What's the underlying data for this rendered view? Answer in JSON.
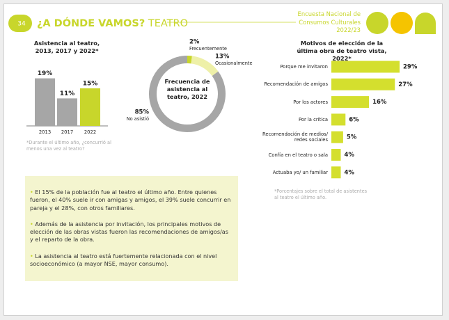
{
  "header": {
    "page_number": "34",
    "title": "¿A DÓNDE VAMOS?",
    "section": "TEATRO",
    "survey": [
      "Encuesta Nacional de",
      "Consumos Culturales",
      "2022/23"
    ]
  },
  "chart_data": [
    {
      "type": "bar",
      "title": "Asistencia al teatro, 2013, 2017 y 2022*",
      "categories": [
        "2013",
        "2017",
        "2022"
      ],
      "values": [
        19,
        11,
        15
      ],
      "value_labels": [
        "19%",
        "11%",
        "15%"
      ],
      "colors": [
        "#a6a6a6",
        "#a6a6a6",
        "#c8d62b"
      ],
      "note": "*Durante el último año, ¿concurrió al menos una vez al teatro?"
    },
    {
      "type": "donut",
      "title": "Frecuencia de asistencia al teatro, 2022",
      "categories": [
        "Frecuentemente",
        "Ocasionalmente",
        "No asistió"
      ],
      "values": [
        2,
        13,
        85
      ],
      "value_labels": [
        "2%",
        "13%",
        "85%"
      ],
      "colors": [
        "#c8d62b",
        "#eef0a8",
        "#a6a6a6"
      ]
    },
    {
      "type": "hbar",
      "title": "Motivos de elección de la última obra de teatro vista, 2022*",
      "categories": [
        "Porque me invitaron",
        "Recomendación de amigos",
        "Por los actores",
        "Por la crítica",
        "Recomendación de medios/ redes sociales",
        "Confía en el teatro o sala",
        "Actuaba yo/ un familiar"
      ],
      "values": [
        29,
        27,
        16,
        6,
        5,
        4,
        4
      ],
      "value_labels": [
        "29%",
        "27%",
        "16%",
        "6%",
        "5%",
        "4%",
        "4%"
      ],
      "color": "#d4df2e",
      "note": "*Porcentajes sobre el total de asistentes al teatro el último año."
    }
  ],
  "highlights": [
    "El 15% de la población fue al teatro el último año. Entre quienes fueron, el 40% suele ir con amigas y amigos, el 39% suele concurrir en pareja y el 28%, con otros familiares.",
    "Además de la asistencia por invitación, los principales motivos de elección de las obras vistas fueron las recomendaciones de amigos/as y el reparto de la obra.",
    "La asistencia al teatro está fuertemente relacionada con el nivel socioeconómico (a mayor NSE, mayor consumo)."
  ]
}
